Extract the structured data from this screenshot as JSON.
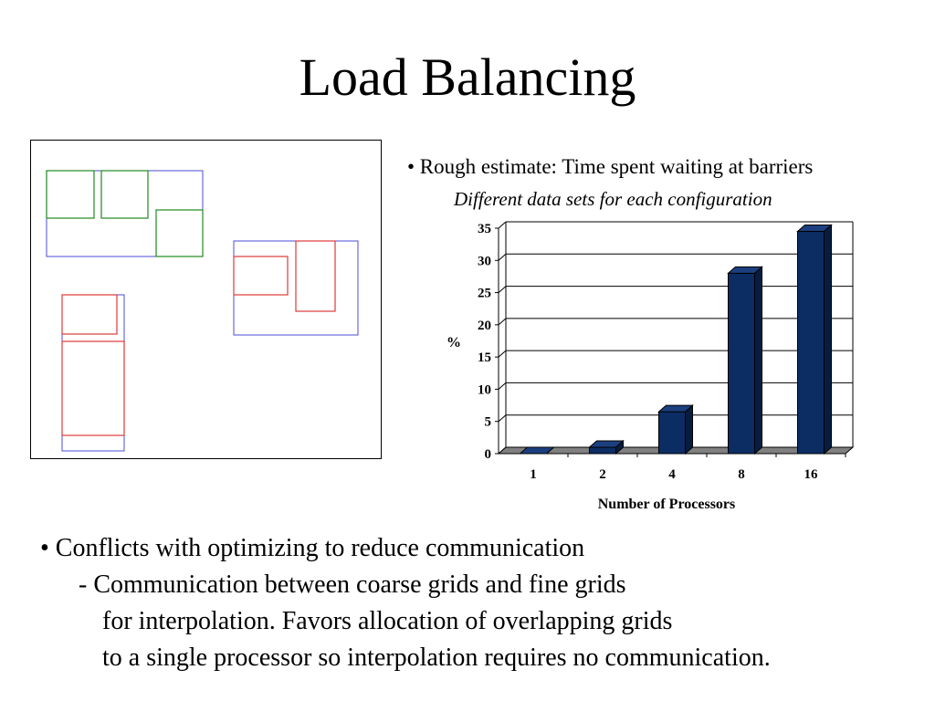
{
  "slide": {
    "title": "Load Balancing",
    "bullet_top": "• Rough estimate: Time spent waiting at barriers",
    "bullet_sub": "Different data sets for each configuration",
    "bottom": {
      "line1": "• Conflicts with optimizing to reduce communication",
      "line2": "- Communication between coarse grids and fine grids",
      "line3": "for interpolation. Favors allocation of overlapping grids",
      "line4": "to a single processor so interpolation requires no communication."
    }
  },
  "colors": {
    "bar_front": "#0b2d63",
    "bar_side": "#071d40",
    "bar_top": "#1c3f7f",
    "floor": "#808080",
    "grid_blue": "#4b4bd8",
    "grid_green": "#1f8a1f",
    "grid_red": "#e03a3a"
  },
  "chart_data": {
    "type": "bar",
    "categories": [
      "1",
      "2",
      "4",
      "8",
      "16"
    ],
    "values": [
      0,
      1,
      6.5,
      28,
      34.5
    ],
    "title": "",
    "xlabel": "Number of Processors",
    "ylabel": "%",
    "ylim": [
      0,
      35
    ],
    "yticks": [
      0,
      5,
      10,
      15,
      20,
      25,
      30,
      35
    ],
    "grid": true,
    "style": "3d"
  }
}
